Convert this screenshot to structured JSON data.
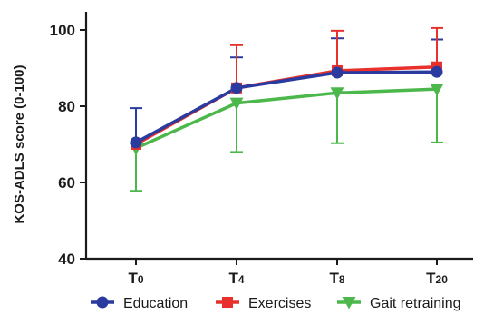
{
  "chart_data": {
    "type": "line",
    "ylabel": "KOS-ADLS score (0-100)",
    "ylim": [
      40,
      100
    ],
    "yticks": [
      40,
      60,
      80,
      100
    ],
    "categories": [
      {
        "main": "T",
        "sub": "0"
      },
      {
        "main": "T",
        "sub": "4"
      },
      {
        "main": "T",
        "sub": "8"
      },
      {
        "main": "T",
        "sub": "20"
      }
    ],
    "series": [
      {
        "name": "Education",
        "color": "#2b3a9e",
        "marker": "circle",
        "values": [
          70.5,
          84.8,
          88.8,
          89.0
        ],
        "upper": [
          79.5,
          92.8,
          97.8,
          97.5
        ],
        "lower": [
          null,
          null,
          null,
          null
        ]
      },
      {
        "name": "Exercises",
        "color": "#e8302c",
        "marker": "square",
        "values": [
          70.0,
          84.8,
          89.3,
          90.3
        ],
        "upper": [
          null,
          96.0,
          99.8,
          100.5
        ],
        "lower": [
          null,
          null,
          null,
          null
        ]
      },
      {
        "name": "Gait retraining",
        "color": "#4cb84c",
        "marker": "triangle-down",
        "values": [
          69.0,
          80.8,
          83.5,
          84.5
        ],
        "upper": [
          null,
          null,
          null,
          null
        ],
        "lower": [
          57.8,
          68.0,
          70.3,
          70.5
        ]
      }
    ],
    "legend_position": "bottom",
    "grid": false
  }
}
